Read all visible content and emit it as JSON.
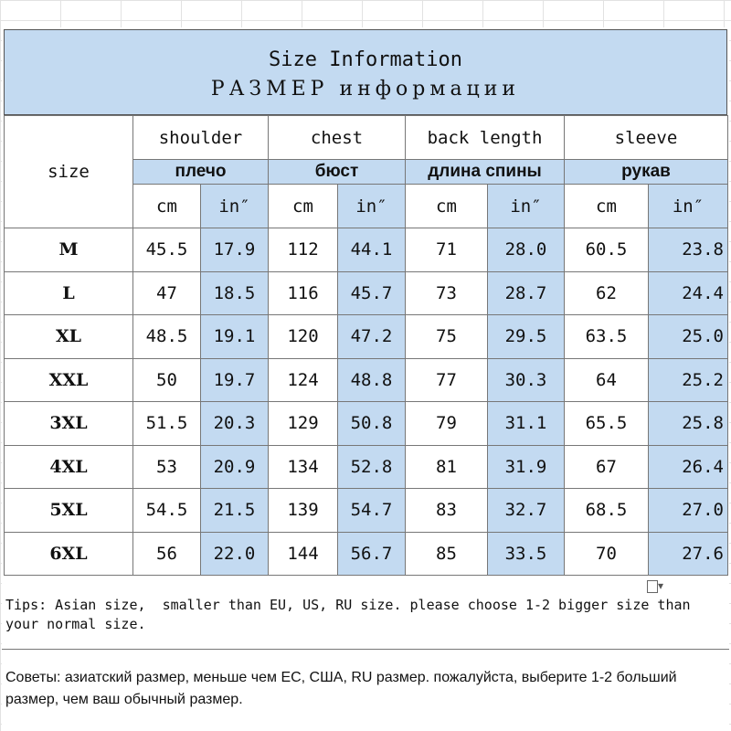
{
  "title": {
    "en": "Size Information",
    "ru": "РАЗМЕР информации"
  },
  "headers": {
    "size": "size",
    "groups": [
      {
        "en": "shoulder",
        "ru": "плечо"
      },
      {
        "en": "chest",
        "ru": "бюст"
      },
      {
        "en": "back length",
        "ru": "длина спины"
      },
      {
        "en": "sleeve",
        "ru": "рукав"
      }
    ],
    "unit_cm": "cm",
    "unit_in": "in″"
  },
  "rows": [
    {
      "size": "M",
      "vals": [
        "45.5",
        "17.9",
        "112",
        "44.1",
        "71",
        "28.0",
        "60.5",
        "23.8"
      ]
    },
    {
      "size": "L",
      "vals": [
        "47",
        "18.5",
        "116",
        "45.7",
        "73",
        "28.7",
        "62",
        "24.4"
      ]
    },
    {
      "size": "XL",
      "vals": [
        "48.5",
        "19.1",
        "120",
        "47.2",
        "75",
        "29.5",
        "63.5",
        "25.0"
      ]
    },
    {
      "size": "XXL",
      "vals": [
        "50",
        "19.7",
        "124",
        "48.8",
        "77",
        "30.3",
        "64",
        "25.2"
      ]
    },
    {
      "size": "3XL",
      "vals": [
        "51.5",
        "20.3",
        "129",
        "50.8",
        "79",
        "31.1",
        "65.5",
        "25.8"
      ]
    },
    {
      "size": "4XL",
      "vals": [
        "53",
        "20.9",
        "134",
        "52.8",
        "81",
        "31.9",
        "67",
        "26.4"
      ]
    },
    {
      "size": "5XL",
      "vals": [
        "54.5",
        "21.5",
        "139",
        "54.7",
        "83",
        "32.7",
        "68.5",
        "27.0"
      ]
    },
    {
      "size": "6XL",
      "vals": [
        "56",
        "22.0",
        "144",
        "56.7",
        "85",
        "33.5",
        "70",
        "27.6"
      ]
    }
  ],
  "tips": {
    "en": "Tips: Asian size,  smaller than EU, US, RU size. please choose 1-2 bigger size than your normal size.",
    "ru": "Советы: азиатский размер, меньше чем ЕС, США, RU размер. пожалуйста, выберите 1-2 больший размер, чем ваш обычный размер."
  },
  "icons": {
    "paste": "paste-options-icon"
  }
}
